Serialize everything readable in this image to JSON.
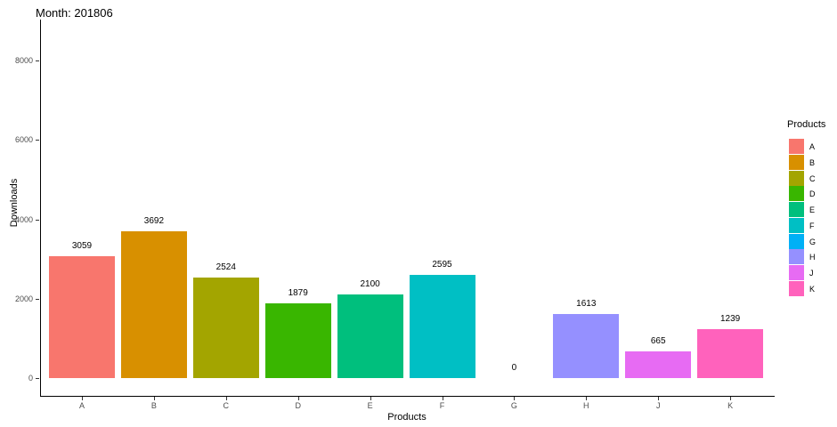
{
  "chart_data": {
    "type": "bar",
    "title": "Month: 201806",
    "xlabel": "Products",
    "ylabel": "Downloads",
    "legend_title": "Products",
    "legend_position": "right",
    "grid": false,
    "categories": [
      "A",
      "B",
      "C",
      "D",
      "E",
      "F",
      "G",
      "H",
      "J",
      "K"
    ],
    "values": [
      3059,
      3692,
      2524,
      1879,
      2100,
      2595,
      0,
      1613,
      665,
      1239
    ],
    "bar_value_labels": [
      "3059",
      "3692",
      "2524",
      "1879",
      "2100",
      "2595",
      "0",
      "1613",
      "665",
      "1239"
    ],
    "colors": [
      "#F8766D",
      "#D89000",
      "#A3A500",
      "#39B600",
      "#00BF7D",
      "#00BFC4",
      "#00B0F6",
      "#9590FF",
      "#E76BF3",
      "#FF62BC"
    ],
    "yticks": [
      0,
      2000,
      4000,
      6000,
      8000
    ],
    "ylim": [
      0,
      8000
    ],
    "axis_color": "#000000",
    "tick_label_color": "#4d4d4d"
  }
}
